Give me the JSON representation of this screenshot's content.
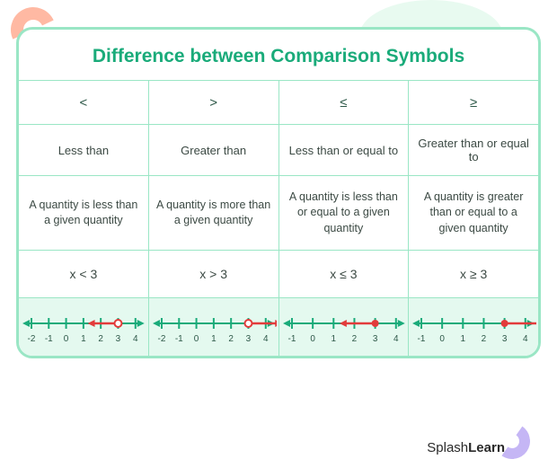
{
  "title": "Difference between Comparison Symbols",
  "brand": {
    "light": "Splash",
    "bold": "Learn"
  },
  "columns": [
    {
      "symbol": "<",
      "name": "Less than",
      "description": "A quantity is less than a given quantity",
      "example": "x < 3",
      "numberline": {
        "ticks": [
          -2,
          -1,
          0,
          1,
          2,
          3,
          4
        ],
        "point": 3,
        "open": true,
        "ray_dir": "left",
        "ray_to": 1.5
      }
    },
    {
      "symbol": ">",
      "name": "Greater than",
      "description": "A quantity is more than a given quantity",
      "example": "x > 3",
      "numberline": {
        "ticks": [
          -2,
          -1,
          0,
          1,
          2,
          3,
          4
        ],
        "point": 3,
        "open": true,
        "ray_dir": "right",
        "ray_to": 4.7
      }
    },
    {
      "symbol": "≤",
      "name": "Less than or equal to",
      "description": "A quantity is less than or equal to a given quantity",
      "example": "x  ≤ 3",
      "numberline": {
        "ticks": [
          -1,
          0,
          1,
          2,
          3,
          4
        ],
        "point": 3,
        "open": false,
        "ray_dir": "left",
        "ray_to": 1.5
      }
    },
    {
      "symbol": "≥",
      "name": "Greater than or equal to",
      "description": "A quantity is greater than or equal to a given quantity",
      "example": "x  ≥ 3",
      "numberline": {
        "ticks": [
          -1,
          0,
          1,
          2,
          3,
          4
        ],
        "point": 3,
        "open": false,
        "ray_dir": "right",
        "ray_to": 4.7
      }
    }
  ],
  "style": {
    "title_color": "#1aab7a",
    "border_color": "#9ae6c5",
    "nl_bg": "#e4f9ef",
    "axis_color": "#1aab7a",
    "ray_color": "#e23b3b",
    "text_color": "#3c4a44"
  }
}
